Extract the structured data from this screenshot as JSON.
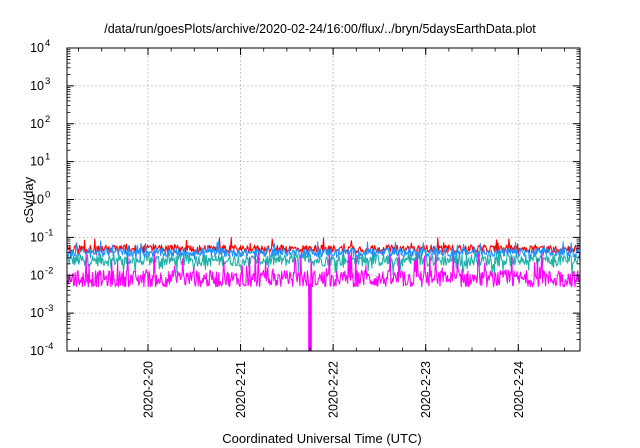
{
  "chart_data": {
    "type": "line",
    "title": "/data/run/goesPlots/archive/2020-02-24/16:00/flux/../bryn/5daysEarthData.plot",
    "xlabel": "Coordinated Universal Time (UTC)",
    "ylabel": "cSv/day",
    "y_scale": "log",
    "ylim": [
      0.0001,
      10000
    ],
    "y_ticks": [
      {
        "exp": "-4",
        "value": 0.0001
      },
      {
        "exp": "-3",
        "value": 0.001
      },
      {
        "exp": "-2",
        "value": 0.01
      },
      {
        "exp": "-1",
        "value": 0.1
      },
      {
        "exp": "0",
        "value": 1
      },
      {
        "exp": "1",
        "value": 10
      },
      {
        "exp": "2",
        "value": 100
      },
      {
        "exp": "3",
        "value": 1000
      },
      {
        "exp": "4",
        "value": 10000
      }
    ],
    "y_tick_base": "10",
    "xlim": [
      "2020-02-19 03:00",
      "2020-02-24 16:00"
    ],
    "x_ticks": [
      "2020-2-20",
      "2020-2-21",
      "2020-2-22",
      "2020-2-23",
      "2020-2-24"
    ],
    "grid": true,
    "legend": "none",
    "series": [
      {
        "color": "#ff0000",
        "typical_value": 0.05,
        "range": [
          0.035,
          0.1
        ]
      },
      {
        "color": "#1e90ff",
        "typical_value": 0.04,
        "range": [
          0.025,
          0.08
        ]
      },
      {
        "color": "#20b2aa",
        "typical_value": 0.025,
        "range": [
          0.01,
          0.05
        ]
      },
      {
        "color": "#ff00ff",
        "typical_value": 0.008,
        "range": [
          0.005,
          0.05
        ]
      }
    ],
    "dropout": {
      "series_color": "#ff00ff",
      "time": "2020-02-21 18:00",
      "min_value": 0.0001
    }
  }
}
